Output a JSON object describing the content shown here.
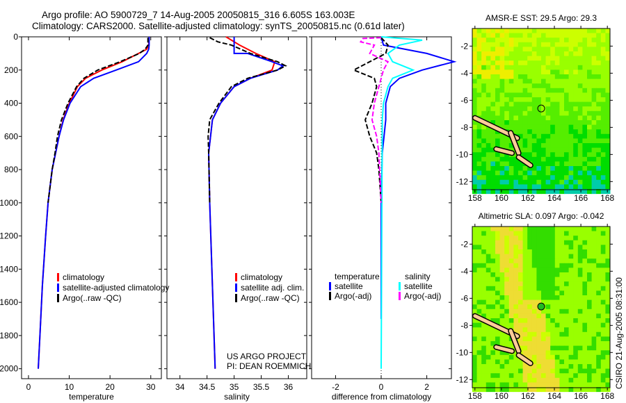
{
  "title_line1": "Argo profile: AO 5900729_7 14-Aug-2005 20050815_316 6.605S 163.003E",
  "title_line2": "Climatology: CARS2000. Satellite-adjusted climatology: synTS_20050815.nc (0.61d later)",
  "credit": "CSIRO 21-Aug-2005 08:31:00",
  "project_line1": "US ARGO PROJECT",
  "project_line2": "PI: DEAN ROEMMICH",
  "colors": {
    "climatology": "#ff0000",
    "satellite": "#0000ff",
    "argo": "#000000",
    "sal_satellite": "#00ffff",
    "sal_argo": "#ff00ff",
    "land": "#ffcc99"
  },
  "chart_data": [
    {
      "type": "line",
      "id": "temperature",
      "xlabel": "temperature",
      "xlim": [
        -1.7,
        32.6
      ],
      "ylim": [
        0,
        2060
      ],
      "xticks": [
        0,
        10,
        20,
        30
      ],
      "yticks": [
        0,
        200,
        400,
        600,
        800,
        1000,
        1200,
        1400,
        1600,
        1800,
        2000
      ],
      "legend": [
        "climatology",
        "satellite-adjusted climatology",
        "Argo(..raw -QC)"
      ],
      "series": [
        {
          "name": "climatology",
          "color": "#ff0000",
          "depth": [
            0,
            50,
            75,
            100,
            150,
            200,
            250,
            300,
            400,
            500,
            600,
            800,
            1000,
            1200,
            1500,
            1800,
            2000
          ],
          "values": [
            29.6,
            29.5,
            29,
            27,
            23,
            18,
            14,
            12,
            10,
            8.5,
            7.5,
            5.8,
            4.8,
            4.2,
            3.4,
            2.8,
            2.4
          ]
        },
        {
          "name": "satellite-adjusted climatology",
          "color": "#0000ff",
          "depth": [
            0,
            50,
            75,
            100,
            150,
            200,
            250,
            300,
            400,
            500,
            600,
            800,
            1000,
            1200,
            1500,
            1800,
            2000
          ],
          "values": [
            29.6,
            29.6,
            29.5,
            29,
            27,
            21.5,
            16,
            12.8,
            10.2,
            8.6,
            7.5,
            5.8,
            4.8,
            4.2,
            3.4,
            2.8,
            2.4
          ]
        },
        {
          "name": "Argo(..raw -QC)",
          "color": "#000000",
          "depth": [
            5,
            50,
            75,
            100,
            150,
            200,
            250,
            300,
            400,
            500,
            600,
            700,
            800,
            1000
          ],
          "values": [
            29.3,
            29.3,
            28.6,
            27.2,
            22.5,
            17,
            13.6,
            11.8,
            9.7,
            8.1,
            7.1,
            6.5,
            5.8,
            4.8
          ]
        }
      ]
    },
    {
      "type": "line",
      "id": "salinity",
      "xlabel": "salinity",
      "xlim": [
        33.76,
        36.34
      ],
      "ylim": [
        0,
        2060
      ],
      "xticks": [
        34,
        34.5,
        35,
        35.5,
        36
      ],
      "legend": [
        "climatology",
        "satellite adj. clim.",
        "Argo(..raw -QC)"
      ],
      "series": [
        {
          "name": "climatology",
          "color": "#ff0000",
          "depth": [
            0,
            50,
            100,
            150,
            200,
            250,
            300,
            400,
            500,
            700,
            1000,
            1500,
            2000
          ],
          "values": [
            34.85,
            35.1,
            35.4,
            35.75,
            35.7,
            35.3,
            35.0,
            34.75,
            34.6,
            34.53,
            34.55,
            34.6,
            34.65
          ]
        },
        {
          "name": "satellite adj. clim.",
          "color": "#0000ff",
          "depth": [
            0,
            100,
            100,
            150,
            175,
            200,
            250,
            300,
            400,
            500,
            700,
            1000,
            1500,
            2000
          ],
          "values": [
            35.0,
            35.0,
            35.25,
            35.7,
            35.9,
            35.8,
            35.3,
            35.0,
            34.75,
            34.6,
            34.53,
            34.55,
            34.6,
            34.65
          ]
        },
        {
          "name": "Argo(..raw -QC)",
          "color": "#000000",
          "depth": [
            5,
            30,
            50,
            100,
            150,
            175,
            200,
            250,
            300,
            400,
            500,
            600,
            700,
            1000
          ],
          "values": [
            34.55,
            34.7,
            34.95,
            35.3,
            35.8,
            35.95,
            35.8,
            35.25,
            34.95,
            34.72,
            34.55,
            34.52,
            34.53,
            34.55
          ]
        }
      ]
    },
    {
      "type": "line",
      "id": "difference",
      "xlabel": "difference from climatology",
      "xlim": [
        -3.05,
        3.08
      ],
      "ylim": [
        0,
        2060
      ],
      "xticks": [
        -2,
        0,
        2
      ],
      "legend_headers": [
        "temperature",
        "salinity"
      ],
      "legend": [
        "satellite",
        "Argo(-adj)",
        "satellite",
        "Argo(-adj)"
      ],
      "series": [
        {
          "name": "temperature satellite",
          "color": "#0000ff",
          "depth": [
            0,
            50,
            100,
            150,
            200,
            250,
            300,
            400,
            500,
            700,
            1000,
            1700
          ],
          "values": [
            0,
            0.1,
            2,
            3.2,
            1.8,
            0.8,
            0.4,
            0.2,
            0.2,
            0.05,
            0,
            0
          ]
        },
        {
          "name": "temperature Argo(-adj)",
          "color": "#000000",
          "depth": [
            5,
            50,
            100,
            150,
            200,
            250,
            300,
            400,
            500,
            600,
            700,
            800,
            1000
          ],
          "values": [
            0,
            0.3,
            0.2,
            -0.5,
            -1.2,
            -0.3,
            -0.2,
            -0.4,
            -0.7,
            -0.5,
            -0.2,
            -0.1,
            0
          ]
        },
        {
          "name": "salinity satellite",
          "color": "#00ffff",
          "depth": [
            0,
            20,
            50,
            100,
            150,
            200,
            250,
            300,
            400,
            500,
            2000
          ],
          "values": [
            0,
            1.8,
            0.8,
            0.3,
            0.5,
            1.4,
            0.5,
            0.3,
            0.1,
            0.05,
            0
          ]
        },
        {
          "name": "salinity Argo(-adj)",
          "color": "#ff00ff",
          "depth": [
            5,
            10,
            30,
            50,
            100,
            150,
            200,
            300,
            400,
            500,
            600,
            700,
            1000
          ],
          "values": [
            0,
            -0.8,
            -0.9,
            -0.3,
            -0.5,
            0.3,
            0.1,
            -0.1,
            -0.3,
            -0.4,
            -0.2,
            -0.1,
            0
          ]
        }
      ]
    },
    {
      "type": "heatmap",
      "id": "sst_map",
      "title": "AMSR-E SST: 29.5 Argo: 29.3",
      "xlim": [
        157.8,
        168.2
      ],
      "ylim": [
        -12.6,
        -0.7
      ],
      "xticks": [
        158,
        160,
        162,
        164,
        166,
        168
      ],
      "yticks": [
        -2,
        -4,
        -6,
        -8,
        -10,
        -12
      ],
      "marker": {
        "lon": 163.003,
        "lat": -6.605
      }
    },
    {
      "type": "heatmap",
      "id": "sla_map",
      "title": "Altimetric SLA: 0.097 Argo: -0.042",
      "xlim": [
        157.8,
        168.2
      ],
      "ylim": [
        -12.6,
        -0.7
      ],
      "xticks": [
        158,
        160,
        162,
        164,
        166,
        168
      ],
      "yticks": [
        -2,
        -4,
        -6,
        -8,
        -10,
        -12
      ],
      "marker": {
        "lon": 163.003,
        "lat": -6.605
      }
    }
  ]
}
